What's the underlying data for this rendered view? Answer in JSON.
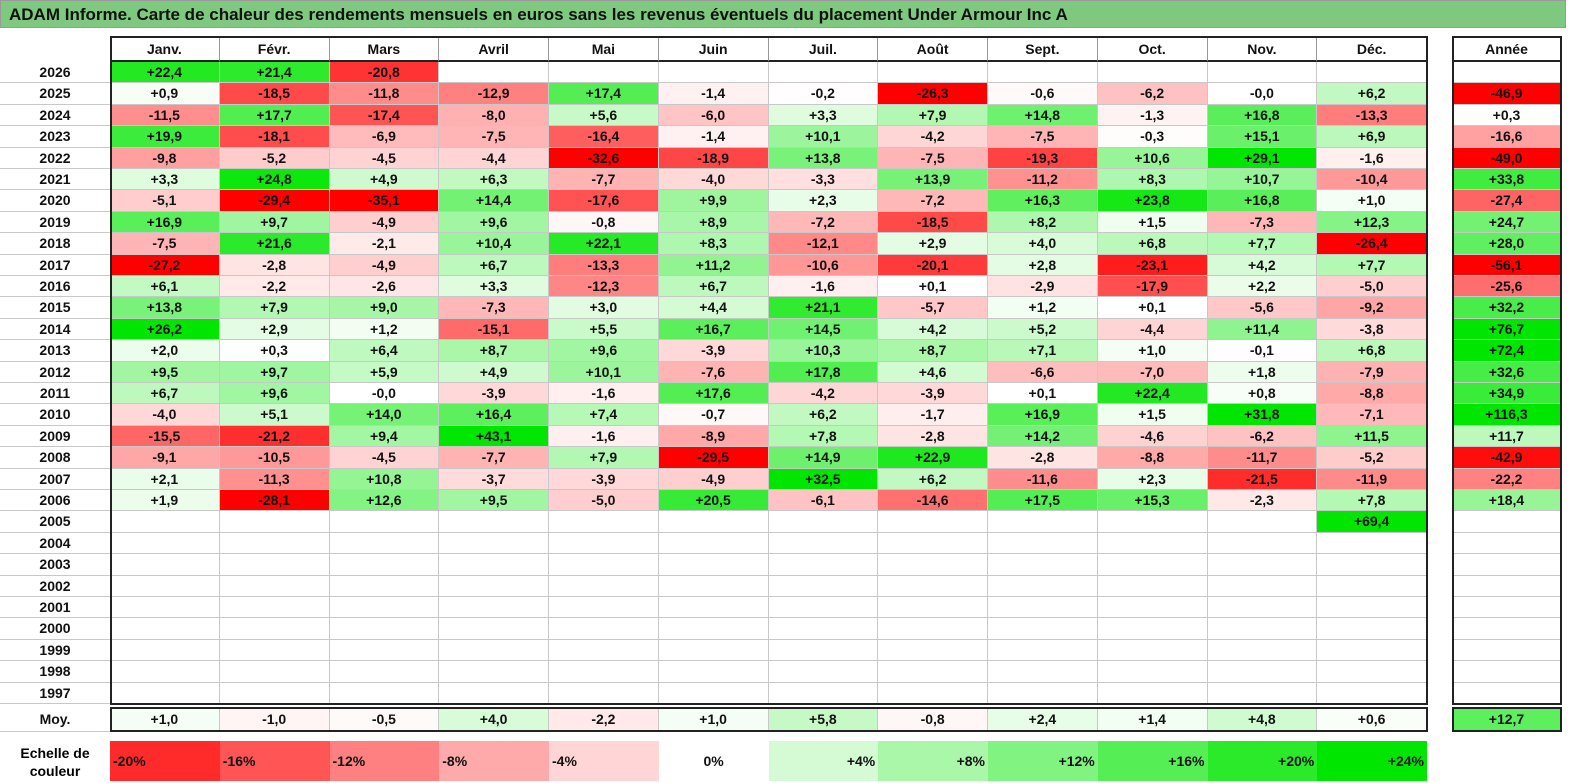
{
  "title": "ADAM Informe. Carte de chaleur des rendements mensuels en euros sans les revenus éventuels du placement Under Armour Inc A",
  "chart_data": {
    "type": "heatmap",
    "columns": [
      "Janv.",
      "Févr.",
      "Mars",
      "Avril",
      "Mai",
      "Juin",
      "Juil.",
      "Août",
      "Sept.",
      "Oct.",
      "Nov.",
      "Déc."
    ],
    "year_header": "Année",
    "rows": [
      {
        "year": "2026",
        "months": [
          "+22,4",
          "+21,4",
          "-20,8",
          "",
          "",
          "",
          "",
          "",
          "",
          "",
          "",
          ""
        ],
        "annual": ""
      },
      {
        "year": "2025",
        "months": [
          "+0,9",
          "-18,5",
          "-11,8",
          "-12,9",
          "+17,4",
          "-1,4",
          "-0,2",
          "-26,3",
          "-0,6",
          "-6,2",
          "-0,0",
          "+6,2"
        ],
        "annual": "-46,9"
      },
      {
        "year": "2024",
        "months": [
          "-11,5",
          "+17,7",
          "-17,4",
          "-8,0",
          "+5,6",
          "-6,0",
          "+3,3",
          "+7,9",
          "+14,8",
          "-1,3",
          "+16,8",
          "-13,3"
        ],
        "annual": "+0,3"
      },
      {
        "year": "2023",
        "months": [
          "+19,9",
          "-18,1",
          "-6,9",
          "-7,5",
          "-16,4",
          "-1,4",
          "+10,1",
          "-4,2",
          "-7,5",
          "-0,3",
          "+15,1",
          "+6,9"
        ],
        "annual": "-16,6"
      },
      {
        "year": "2022",
        "months": [
          "-9,8",
          "-5,2",
          "-4,5",
          "-4,4",
          "-32,6",
          "-18,9",
          "+13,8",
          "-7,5",
          "-19,3",
          "+10,6",
          "+29,1",
          "-1,6"
        ],
        "annual": "-49,0"
      },
      {
        "year": "2021",
        "months": [
          "+3,3",
          "+24,8",
          "+4,9",
          "+6,3",
          "-7,7",
          "-4,0",
          "-3,3",
          "+13,9",
          "-11,2",
          "+8,3",
          "+10,7",
          "-10,4"
        ],
        "annual": "+33,8"
      },
      {
        "year": "2020",
        "months": [
          "-5,1",
          "-29,4",
          "-35,1",
          "+14,4",
          "-17,6",
          "+9,9",
          "+2,3",
          "-7,2",
          "+16,3",
          "+23,8",
          "+16,8",
          "+1,0"
        ],
        "annual": "-27,4"
      },
      {
        "year": "2019",
        "months": [
          "+16,9",
          "+9,7",
          "-4,9",
          "+9,6",
          "-0,8",
          "+8,9",
          "-7,2",
          "-18,5",
          "+8,2",
          "+1,5",
          "-7,3",
          "+12,3"
        ],
        "annual": "+24,7"
      },
      {
        "year": "2018",
        "months": [
          "-7,5",
          "+21,6",
          "-2,1",
          "+10,4",
          "+22,1",
          "+8,3",
          "-12,1",
          "+2,9",
          "+4,0",
          "+6,8",
          "+7,7",
          "-26,4"
        ],
        "annual": "+28,0"
      },
      {
        "year": "2017",
        "months": [
          "-27,2",
          "-2,8",
          "-4,9",
          "+6,7",
          "-13,3",
          "+11,2",
          "-10,6",
          "-20,1",
          "+2,8",
          "-23,1",
          "+4,2",
          "+7,7"
        ],
        "annual": "-56,1"
      },
      {
        "year": "2016",
        "months": [
          "+6,1",
          "-2,2",
          "-2,6",
          "+3,3",
          "-12,3",
          "+6,7",
          "-1,6",
          "+0,1",
          "-2,9",
          "-17,9",
          "+2,2",
          "-5,0"
        ],
        "annual": "-25,6"
      },
      {
        "year": "2015",
        "months": [
          "+13,8",
          "+7,9",
          "+9,0",
          "-7,3",
          "+3,0",
          "+4,4",
          "+21,1",
          "-5,7",
          "+1,2",
          "+0,1",
          "-5,6",
          "-9,2"
        ],
        "annual": "+32,2"
      },
      {
        "year": "2014",
        "months": [
          "+26,2",
          "+2,9",
          "+1,2",
          "-15,1",
          "+5,5",
          "+16,7",
          "+14,5",
          "+4,2",
          "+5,2",
          "-4,4",
          "+11,4",
          "-3,8"
        ],
        "annual": "+76,7"
      },
      {
        "year": "2013",
        "months": [
          "+2,0",
          "+0,3",
          "+6,4",
          "+8,7",
          "+9,6",
          "-3,9",
          "+10,3",
          "+8,7",
          "+7,1",
          "+1,0",
          "-0,1",
          "+6,8"
        ],
        "annual": "+72,4"
      },
      {
        "year": "2012",
        "months": [
          "+9,5",
          "+9,7",
          "+5,9",
          "+4,9",
          "+10,1",
          "-7,6",
          "+17,8",
          "+4,6",
          "-6,6",
          "-7,0",
          "+1,8",
          "-7,9"
        ],
        "annual": "+32,6"
      },
      {
        "year": "2011",
        "months": [
          "+6,7",
          "+9,6",
          "-0,0",
          "-3,9",
          "-1,6",
          "+17,6",
          "-4,2",
          "-3,9",
          "+0,1",
          "+22,4",
          "+0,8",
          "-8,8"
        ],
        "annual": "+34,9"
      },
      {
        "year": "2010",
        "months": [
          "-4,0",
          "+5,1",
          "+14,0",
          "+16,4",
          "+7,4",
          "-0,7",
          "+6,2",
          "-1,7",
          "+16,9",
          "+1,5",
          "+31,8",
          "-7,1"
        ],
        "annual": "+116,3"
      },
      {
        "year": "2009",
        "months": [
          "-15,5",
          "-21,2",
          "+9,4",
          "+43,1",
          "-1,6",
          "-8,9",
          "+7,8",
          "-2,8",
          "+14,2",
          "-4,6",
          "-6,2",
          "+11,5"
        ],
        "annual": "+11,7"
      },
      {
        "year": "2008",
        "months": [
          "-9,1",
          "-10,5",
          "-4,5",
          "-7,7",
          "+7,9",
          "-29,5",
          "+14,9",
          "+22,9",
          "-2,8",
          "-8,8",
          "-11,7",
          "-5,2"
        ],
        "annual": "-42,9"
      },
      {
        "year": "2007",
        "months": [
          "+2,1",
          "-11,3",
          "+10,8",
          "-3,7",
          "-3,9",
          "-4,9",
          "+32,5",
          "+6,2",
          "-11,6",
          "+2,3",
          "-21,5",
          "-11,9"
        ],
        "annual": "-22,2"
      },
      {
        "year": "2006",
        "months": [
          "+1,9",
          "-28,1",
          "+12,6",
          "+9,5",
          "-5,0",
          "+20,5",
          "-6,1",
          "-14,6",
          "+17,5",
          "+15,3",
          "-2,3",
          "+7,8"
        ],
        "annual": "+18,4"
      },
      {
        "year": "2005",
        "months": [
          "",
          "",
          "",
          "",
          "",
          "",
          "",
          "",
          "",
          "",
          "",
          "+69,4"
        ],
        "annual": ""
      },
      {
        "year": "2004",
        "months": [
          "",
          "",
          "",
          "",
          "",
          "",
          "",
          "",
          "",
          "",
          "",
          ""
        ],
        "annual": ""
      },
      {
        "year": "2003",
        "months": [
          "",
          "",
          "",
          "",
          "",
          "",
          "",
          "",
          "",
          "",
          "",
          ""
        ],
        "annual": ""
      },
      {
        "year": "2002",
        "months": [
          "",
          "",
          "",
          "",
          "",
          "",
          "",
          "",
          "",
          "",
          "",
          ""
        ],
        "annual": ""
      },
      {
        "year": "2001",
        "months": [
          "",
          "",
          "",
          "",
          "",
          "",
          "",
          "",
          "",
          "",
          "",
          ""
        ],
        "annual": ""
      },
      {
        "year": "2000",
        "months": [
          "",
          "",
          "",
          "",
          "",
          "",
          "",
          "",
          "",
          "",
          "",
          ""
        ],
        "annual": ""
      },
      {
        "year": "1999",
        "months": [
          "",
          "",
          "",
          "",
          "",
          "",
          "",
          "",
          "",
          "",
          "",
          ""
        ],
        "annual": ""
      },
      {
        "year": "1998",
        "months": [
          "",
          "",
          "",
          "",
          "",
          "",
          "",
          "",
          "",
          "",
          "",
          ""
        ],
        "annual": ""
      },
      {
        "year": "1997",
        "months": [
          "",
          "",
          "",
          "",
          "",
          "",
          "",
          "",
          "",
          "",
          "",
          ""
        ],
        "annual": ""
      }
    ],
    "average": {
      "label": "Moy.",
      "months": [
        "+1,0",
        "-1,0",
        "-0,5",
        "+4,0",
        "-2,2",
        "+1,0",
        "+5,8",
        "-0,8",
        "+2,4",
        "+1,4",
        "+4,8",
        "+0,6"
      ],
      "annual": "+12,7"
    },
    "scale": {
      "label": "Echelle de couleur",
      "ticks": [
        "-20%",
        "-16%",
        "-12%",
        "-8%",
        "-4%",
        "0%",
        "+4%",
        "+8%",
        "+12%",
        "+16%",
        "+20%",
        "+24%"
      ]
    },
    "colors": {
      "negative_max": "#ff0000",
      "neutral": "#ffffff",
      "positive_max": "#00e600"
    }
  }
}
